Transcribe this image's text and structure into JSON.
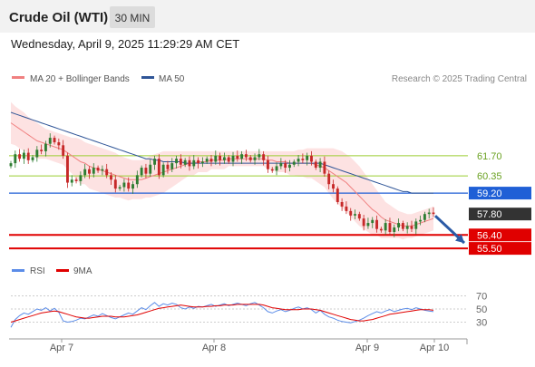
{
  "header": {
    "instrument": "Crude Oil (WTI)",
    "timeframe": "30 MIN",
    "datetime": "Wednesday, April 9, 2025 11:29:29 AM CET"
  },
  "legend": {
    "ma20_bb": "MA 20 + Bollinger Bands",
    "ma50": "MA 50",
    "copyright": "Research © 2025 Trading Central",
    "rsi": "RSI",
    "rsi_ma": "9MA"
  },
  "colors": {
    "ma20_bb": "#f08080",
    "ma50": "#2f5597",
    "band_fill": "#fde2e2",
    "up_candle": "#2e7d32",
    "down_candle": "#c62828",
    "resistance": "#9acd32",
    "pivot": "#1f5fd6",
    "support": "#e00000",
    "arrow": "#2b5aa6",
    "rsi": "#5b8ce8",
    "rsi_ma": "#e00000"
  },
  "chart_data": [
    {
      "type": "candlestick",
      "price_range": [
        54.9,
        66.3
      ],
      "x_ticks": [
        "Apr 7",
        "Apr 8",
        "Apr 9",
        "Apr 10"
      ],
      "levels": [
        {
          "label": "61.70",
          "value": 61.7,
          "kind": "resistance"
        },
        {
          "label": "60.35",
          "value": 60.35,
          "kind": "resistance"
        },
        {
          "label": "59.20",
          "value": 59.2,
          "kind": "pivot"
        },
        {
          "label": "57.80",
          "value": 57.8,
          "kind": "last"
        },
        {
          "label": "56.40",
          "value": 56.4,
          "kind": "support"
        },
        {
          "label": "55.50",
          "value": 55.5,
          "kind": "support"
        }
      ],
      "close": [
        61.2,
        61.8,
        61.5,
        61.9,
        61.4,
        61.6,
        62.1,
        62.0,
        62.5,
        62.9,
        62.6,
        62.4,
        61.7,
        59.9,
        60.1,
        60.0,
        60.4,
        60.8,
        60.5,
        60.9,
        60.7,
        60.8,
        60.4,
        60.1,
        59.5,
        59.6,
        59.9,
        59.5,
        59.8,
        60.4,
        60.9,
        60.5,
        61.1,
        61.5,
        60.4,
        61.1,
        60.8,
        61.2,
        61.5,
        61.1,
        61.4,
        61.0,
        61.4,
        61.2,
        61.3,
        61.5,
        61.3,
        61.7,
        61.4,
        61.6,
        61.3,
        61.7,
        61.5,
        61.8,
        61.6,
        61.4,
        61.6,
        61.8,
        61.4,
        60.8,
        60.7,
        61.0,
        61.2,
        60.9,
        61.1,
        61.3,
        61.5,
        61.4,
        61.7,
        61.3,
        60.9,
        61.3,
        60.5,
        59.8,
        59.5,
        58.6,
        58.3,
        58.0,
        57.7,
        57.8,
        57.5,
        57.0,
        57.2,
        57.4,
        56.8,
        56.7,
        57.2,
        56.6,
        56.9,
        57.2,
        56.8,
        57.0,
        56.8,
        57.3,
        57.4,
        57.8,
        57.9,
        57.8
      ],
      "open": [
        61.0,
        61.2,
        61.8,
        61.5,
        61.9,
        61.4,
        61.6,
        62.1,
        62.0,
        62.5,
        62.9,
        62.6,
        62.4,
        61.7,
        59.9,
        60.1,
        60.0,
        60.4,
        60.8,
        60.5,
        60.9,
        60.7,
        60.8,
        60.4,
        60.1,
        59.5,
        59.6,
        59.9,
        59.5,
        59.8,
        60.4,
        60.9,
        60.5,
        61.1,
        61.5,
        60.4,
        61.1,
        60.8,
        61.2,
        61.5,
        61.1,
        61.4,
        61.0,
        61.4,
        61.2,
        61.3,
        61.5,
        61.3,
        61.7,
        61.4,
        61.6,
        61.3,
        61.7,
        61.5,
        61.8,
        61.6,
        61.4,
        61.6,
        61.8,
        61.4,
        60.8,
        60.7,
        61.0,
        61.2,
        60.9,
        61.1,
        61.3,
        61.5,
        61.4,
        61.7,
        61.3,
        60.9,
        61.3,
        60.5,
        59.8,
        59.5,
        58.6,
        58.3,
        58.0,
        57.7,
        57.8,
        57.5,
        57.0,
        57.2,
        57.4,
        56.8,
        56.7,
        57.2,
        56.6,
        56.9,
        57.2,
        56.8,
        57.0,
        56.8,
        57.3,
        57.4,
        57.8,
        57.9
      ],
      "ma20": [
        63.9,
        63.7,
        63.5,
        63.3,
        63.1,
        62.9,
        62.7,
        62.6,
        62.5,
        62.4,
        62.3,
        62.2,
        62.1,
        61.9,
        61.7,
        61.5,
        61.3,
        61.2,
        61.0,
        60.9,
        60.8,
        60.7,
        60.6,
        60.5,
        60.4,
        60.3,
        60.2,
        60.1,
        60.1,
        60.1,
        60.1,
        60.2,
        60.3,
        60.4,
        60.5,
        60.6,
        60.7,
        60.8,
        60.9,
        61.0,
        61.1,
        61.2,
        61.2,
        61.3,
        61.3,
        61.3,
        61.4,
        61.4,
        61.4,
        61.4,
        61.5,
        61.5,
        61.5,
        61.5,
        61.5,
        61.5,
        61.5,
        61.5,
        61.5,
        61.4,
        61.4,
        61.3,
        61.3,
        61.3,
        61.2,
        61.2,
        61.2,
        61.2,
        61.2,
        61.2,
        61.1,
        61.0,
        60.9,
        60.7,
        60.5,
        60.3,
        60.1,
        59.9,
        59.6,
        59.3,
        59.0,
        58.7,
        58.4,
        58.1,
        57.9,
        57.6,
        57.4,
        57.3,
        57.2,
        57.1,
        57.0,
        57.0,
        57.0,
        57.1,
        57.2,
        57.3,
        57.4,
        57.5
      ],
      "ma50": [
        64.6,
        64.5,
        64.4,
        64.3,
        64.2,
        64.1,
        64.0,
        63.9,
        63.8,
        63.7,
        63.6,
        63.5,
        63.4,
        63.3,
        63.2,
        63.1,
        63.0,
        62.9,
        62.8,
        62.7,
        62.6,
        62.5,
        62.4,
        62.3,
        62.2,
        62.1,
        62.0,
        61.9,
        61.8,
        61.7,
        61.6,
        61.5,
        61.5,
        61.4,
        61.4,
        61.3,
        61.3,
        61.3,
        61.3,
        61.3,
        61.2,
        61.2,
        61.2,
        61.2,
        61.2,
        61.2,
        61.2,
        61.2,
        61.2,
        61.2,
        61.2,
        61.2,
        61.2,
        61.2,
        61.2,
        61.2,
        61.2,
        61.2,
        61.2,
        61.2,
        61.2,
        61.2,
        61.2,
        61.2,
        61.2,
        61.2,
        61.2,
        61.2,
        61.2,
        61.2,
        61.2,
        61.2,
        61.1,
        61.0,
        60.9,
        60.8,
        60.7,
        60.6,
        60.5,
        60.4,
        60.3,
        60.2,
        60.1,
        60.0,
        59.9,
        59.8,
        59.7,
        59.6,
        59.5,
        59.4,
        59.3,
        59.3,
        59.2,
        59.2,
        59.2,
        59.2,
        59.2,
        59.2
      ],
      "bb_upper": [
        65.3,
        65.0,
        64.8,
        64.6,
        64.3,
        64.1,
        63.9,
        63.7,
        63.5,
        63.4,
        63.3,
        63.2,
        63.1,
        63.0,
        62.9,
        62.9,
        62.8,
        62.6,
        62.5,
        62.4,
        62.3,
        62.2,
        62.1,
        62.0,
        61.9,
        61.7,
        61.6,
        61.5,
        61.4,
        61.4,
        61.4,
        61.5,
        61.7,
        61.8,
        61.9,
        62.0,
        62.0,
        62.0,
        62.0,
        62.0,
        62.0,
        62.0,
        62.0,
        62.0,
        62.0,
        62.0,
        62.0,
        62.0,
        62.0,
        62.0,
        62.0,
        62.0,
        62.0,
        62.0,
        62.0,
        62.0,
        62.0,
        62.0,
        62.0,
        62.0,
        62.0,
        62.0,
        62.0,
        62.0,
        62.0,
        62.0,
        62.1,
        62.1,
        62.2,
        62.2,
        62.2,
        62.2,
        62.2,
        62.2,
        62.2,
        62.1,
        62.0,
        61.8,
        61.6,
        61.3,
        61.0,
        60.6,
        60.2,
        59.8,
        59.4,
        59.0,
        58.6,
        58.4,
        58.2,
        58.0,
        57.9,
        57.8,
        57.8,
        57.9,
        58.0,
        58.1,
        58.2,
        58.3
      ],
      "bb_lower": [
        62.5,
        62.4,
        62.2,
        62.0,
        61.9,
        61.7,
        61.5,
        61.5,
        61.5,
        61.4,
        61.3,
        61.2,
        61.1,
        60.8,
        60.5,
        60.1,
        59.8,
        59.8,
        59.5,
        59.4,
        59.3,
        59.2,
        59.1,
        59.0,
        58.9,
        58.9,
        58.8,
        58.7,
        58.8,
        58.8,
        58.8,
        58.9,
        58.9,
        59.0,
        59.1,
        59.2,
        59.4,
        59.6,
        59.8,
        60.0,
        60.2,
        60.4,
        60.4,
        60.6,
        60.6,
        60.6,
        60.8,
        60.8,
        60.8,
        60.8,
        61.0,
        61.0,
        61.0,
        61.0,
        61.0,
        61.0,
        61.0,
        61.0,
        61.0,
        60.8,
        60.8,
        60.6,
        60.6,
        60.6,
        60.4,
        60.4,
        60.3,
        60.3,
        60.2,
        60.2,
        60.0,
        59.8,
        59.6,
        59.2,
        58.8,
        58.5,
        58.2,
        58.0,
        57.6,
        57.3,
        57.0,
        56.8,
        56.6,
        56.4,
        56.4,
        56.2,
        56.2,
        56.2,
        56.2,
        56.2,
        56.1,
        56.2,
        56.2,
        56.3,
        56.4,
        56.5,
        56.6,
        56.7
      ]
    },
    {
      "type": "line",
      "name": "RSI",
      "y_ticks": [
        70,
        50,
        30
      ],
      "ylim": [
        10,
        90
      ],
      "rsi": [
        22,
        34,
        40,
        44,
        42,
        46,
        50,
        48,
        52,
        47,
        51,
        45,
        32,
        30,
        31,
        33,
        36,
        35,
        38,
        41,
        39,
        43,
        40,
        37,
        35,
        38,
        41,
        44,
        42,
        47,
        52,
        49,
        55,
        60,
        54,
        58,
        56,
        59,
        57,
        52,
        50,
        53,
        51,
        54,
        53,
        55,
        57,
        54,
        56,
        58,
        55,
        57,
        59,
        57,
        55,
        58,
        60,
        56,
        52,
        46,
        44,
        47,
        49,
        46,
        48,
        51,
        53,
        50,
        52,
        49,
        44,
        48,
        42,
        38,
        36,
        33,
        31,
        30,
        29,
        31,
        33,
        36,
        40,
        43,
        46,
        44,
        47,
        49,
        46,
        48,
        50,
        51,
        49,
        52,
        50,
        48,
        47,
        46
      ],
      "rsi_ma": [
        30,
        32,
        34,
        36,
        38,
        40,
        42,
        44,
        45,
        46,
        47,
        46,
        44,
        42,
        40,
        38,
        37,
        36,
        36,
        37,
        38,
        39,
        39,
        39,
        38,
        38,
        38,
        39,
        40,
        41,
        43,
        45,
        47,
        49,
        51,
        52,
        53,
        54,
        55,
        56,
        55,
        54,
        53,
        53,
        53,
        54,
        54,
        55,
        55,
        56,
        56,
        56,
        57,
        57,
        57,
        57,
        57,
        57,
        56,
        54,
        52,
        51,
        50,
        49,
        49,
        49,
        49,
        50,
        50,
        50,
        49,
        48,
        46,
        44,
        42,
        40,
        38,
        36,
        34,
        33,
        32,
        32,
        33,
        34,
        36,
        38,
        40,
        42,
        43,
        44,
        45,
        46,
        47,
        48,
        49,
        49,
        49,
        48
      ]
    }
  ]
}
